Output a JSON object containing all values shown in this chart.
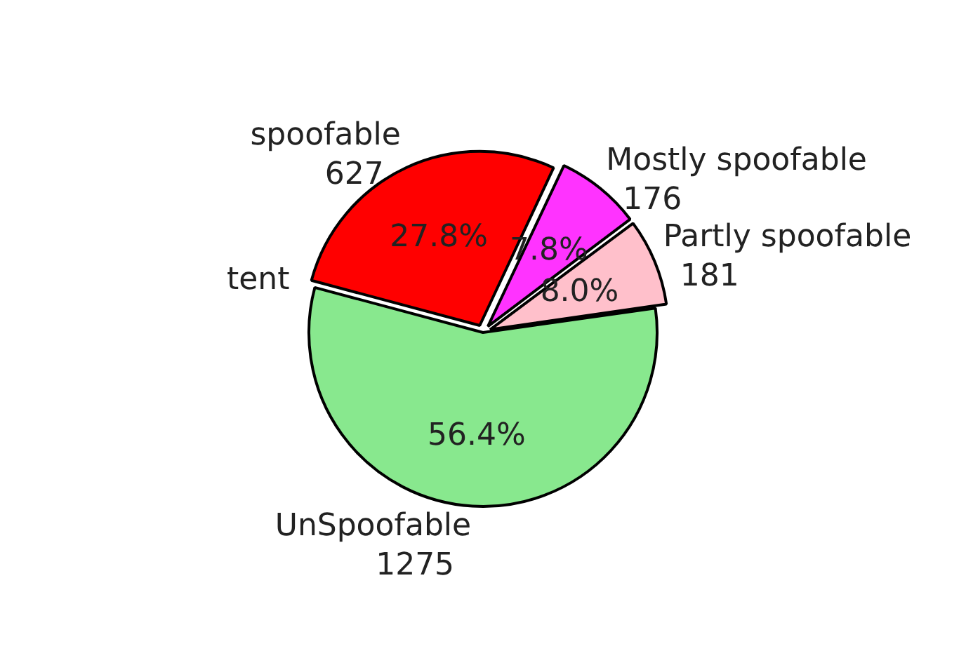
{
  "chart_data": {
    "type": "pie",
    "categories": [
      "spoofable\n627",
      "Mostly spoofable\n176",
      "Partly spoofable\n181",
      "UnSpoofable\n1275"
    ],
    "values": [
      27.8,
      7.8,
      8.0,
      56.4
    ],
    "colors": [
      "#ff0000",
      "#ff33ff",
      "#ffc0cb",
      "#88e88e"
    ],
    "value_labels": [
      "27.8%",
      "7.8%",
      "8.0%",
      "56.4%"
    ],
    "annotations": [
      "tent"
    ],
    "legend": false
  }
}
